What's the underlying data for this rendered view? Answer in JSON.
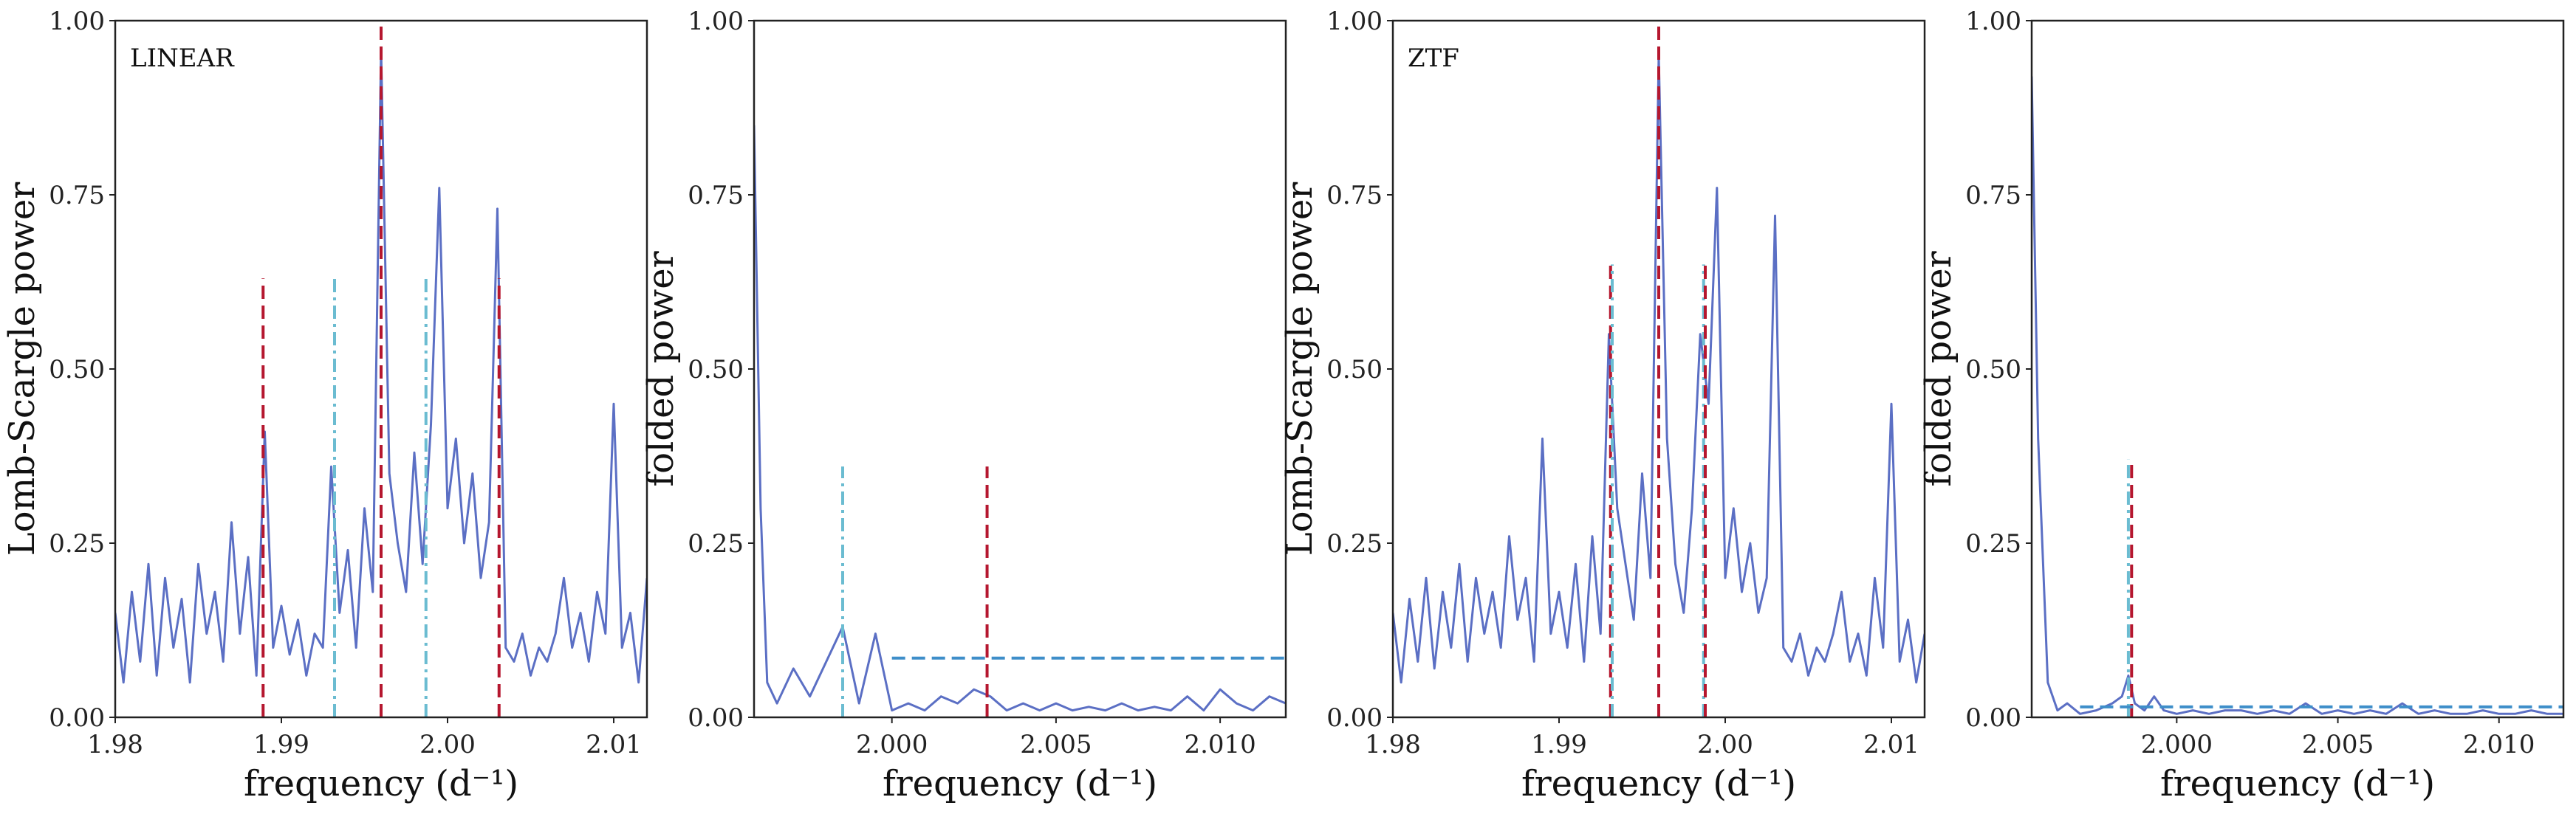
{
  "chart_data": [
    {
      "type": "line",
      "annotation": "LINEAR",
      "xlabel": "frequency (d⁻¹)",
      "ylabel": "Lomb-Scargle power",
      "xlim": [
        1.98,
        2.012
      ],
      "ylim": [
        0,
        1
      ],
      "xticks": [
        "1.98",
        "1.99",
        "2.00",
        "2.01"
      ],
      "xtick_values": [
        1.98,
        1.99,
        2.0,
        2.01
      ],
      "yticks": [
        "0.00",
        "0.25",
        "0.50",
        "0.75",
        "1.00"
      ],
      "ytick_values": [
        0,
        0.25,
        0.5,
        0.75,
        1.0
      ],
      "grid": false,
      "series": [
        {
          "color": "#5b6fc4",
          "x": [
            1.98,
            1.9805,
            1.981,
            1.9815,
            1.982,
            1.9825,
            1.983,
            1.9835,
            1.984,
            1.9845,
            1.985,
            1.9855,
            1.986,
            1.9865,
            1.987,
            1.9875,
            1.988,
            1.9885,
            1.989,
            1.9895,
            1.99,
            1.9905,
            1.991,
            1.9915,
            1.992,
            1.9925,
            1.993,
            1.9935,
            1.994,
            1.9945,
            1.995,
            1.9955,
            1.996,
            1.9965,
            1.997,
            1.9975,
            1.998,
            1.9985,
            1.999,
            1.9995,
            2.0,
            2.0005,
            2.001,
            2.0015,
            2.002,
            2.0025,
            2.003,
            2.0035,
            2.004,
            2.0045,
            2.005,
            2.0055,
            2.006,
            2.0065,
            2.007,
            2.0075,
            2.008,
            2.0085,
            2.009,
            2.0095,
            2.01,
            2.0105,
            2.011,
            2.0115,
            2.012
          ],
          "values": [
            0.15,
            0.05,
            0.18,
            0.08,
            0.22,
            0.06,
            0.2,
            0.1,
            0.17,
            0.05,
            0.22,
            0.12,
            0.18,
            0.08,
            0.28,
            0.12,
            0.23,
            0.06,
            0.41,
            0.1,
            0.16,
            0.09,
            0.14,
            0.06,
            0.12,
            0.1,
            0.36,
            0.15,
            0.24,
            0.1,
            0.3,
            0.18,
            0.96,
            0.35,
            0.25,
            0.18,
            0.38,
            0.22,
            0.42,
            0.76,
            0.3,
            0.4,
            0.25,
            0.35,
            0.2,
            0.28,
            0.73,
            0.1,
            0.08,
            0.12,
            0.06,
            0.1,
            0.08,
            0.12,
            0.2,
            0.1,
            0.15,
            0.08,
            0.18,
            0.12,
            0.45,
            0.1,
            0.15,
            0.05,
            0.2
          ]
        }
      ],
      "vlines": [
        {
          "x": 1.9889,
          "ymax": 0.63,
          "color": "#b5172f",
          "dash": "dashed"
        },
        {
          "x": 1.9932,
          "ymax": 0.63,
          "color": "#6bbcd1",
          "dash": "dashdot"
        },
        {
          "x": 1.996,
          "ymax": 1.0,
          "color": "#b5172f",
          "dash": "dashed"
        },
        {
          "x": 1.9987,
          "ymax": 0.63,
          "color": "#6bbcd1",
          "dash": "dashdot"
        },
        {
          "x": 2.0031,
          "ymax": 0.63,
          "color": "#b5172f",
          "dash": "dashed"
        }
      ],
      "hlines": []
    },
    {
      "type": "line",
      "annotation": "",
      "xlabel": "frequency (d⁻¹)",
      "ylabel": "folded power",
      "xlim": [
        1.9958,
        2.012
      ],
      "ylim": [
        0,
        1
      ],
      "xticks": [
        "2.000",
        "2.005",
        "2.010"
      ],
      "xtick_values": [
        2.0,
        2.005,
        2.01
      ],
      "yticks": [
        "0.00",
        "0.25",
        "0.50",
        "0.75",
        "1.00"
      ],
      "ytick_values": [
        0,
        0.25,
        0.5,
        0.75,
        1.0
      ],
      "grid": false,
      "series": [
        {
          "color": "#5b6fc4",
          "x": [
            1.9958,
            1.996,
            1.9962,
            1.9965,
            1.997,
            1.9975,
            1.998,
            1.9985,
            1.999,
            1.9995,
            2.0,
            2.0005,
            2.001,
            2.0015,
            2.002,
            2.0025,
            2.003,
            2.0035,
            2.004,
            2.0045,
            2.005,
            2.0055,
            2.006,
            2.0065,
            2.007,
            2.0075,
            2.008,
            2.0085,
            2.009,
            2.0095,
            2.01,
            2.0105,
            2.011,
            2.0115,
            2.012
          ],
          "values": [
            0.85,
            0.3,
            0.05,
            0.02,
            0.07,
            0.03,
            0.08,
            0.13,
            0.02,
            0.12,
            0.01,
            0.02,
            0.01,
            0.03,
            0.02,
            0.04,
            0.03,
            0.01,
            0.02,
            0.01,
            0.02,
            0.01,
            0.015,
            0.01,
            0.02,
            0.01,
            0.015,
            0.01,
            0.03,
            0.01,
            0.04,
            0.02,
            0.01,
            0.03,
            0.02
          ]
        }
      ],
      "vlines": [
        {
          "x": 1.9985,
          "ymax": 0.36,
          "color": "#6bbcd1",
          "dash": "dashdot"
        },
        {
          "x": 2.0029,
          "ymax": 0.36,
          "color": "#b5172f",
          "dash": "dashed"
        }
      ],
      "hlines": [
        {
          "y": 0.085,
          "x0": 2.0,
          "x1": 2.012,
          "color": "#3e8ec9",
          "dash": "dashed"
        }
      ]
    },
    {
      "type": "line",
      "annotation": "ZTF",
      "xlabel": "frequency (d⁻¹)",
      "ylabel": "Lomb-Scargle power",
      "xlim": [
        1.98,
        2.012
      ],
      "ylim": [
        0,
        1
      ],
      "xticks": [
        "1.98",
        "1.99",
        "2.00",
        "2.01"
      ],
      "xtick_values": [
        1.98,
        1.99,
        2.0,
        2.01
      ],
      "yticks": [
        "0.00",
        "0.25",
        "0.50",
        "0.75",
        "1.00"
      ],
      "ytick_values": [
        0,
        0.25,
        0.5,
        0.75,
        1.0
      ],
      "grid": false,
      "series": [
        {
          "color": "#5b6fc4",
          "x": [
            1.98,
            1.9805,
            1.981,
            1.9815,
            1.982,
            1.9825,
            1.983,
            1.9835,
            1.984,
            1.9845,
            1.985,
            1.9855,
            1.986,
            1.9865,
            1.987,
            1.9875,
            1.988,
            1.9885,
            1.989,
            1.9895,
            1.99,
            1.9905,
            1.991,
            1.9915,
            1.992,
            1.9925,
            1.993,
            1.9935,
            1.994,
            1.9945,
            1.995,
            1.9955,
            1.996,
            1.9965,
            1.997,
            1.9975,
            1.998,
            1.9985,
            1.999,
            1.9995,
            2.0,
            2.0005,
            2.001,
            2.0015,
            2.002,
            2.0025,
            2.003,
            2.0035,
            2.004,
            2.0045,
            2.005,
            2.0055,
            2.006,
            2.0065,
            2.007,
            2.0075,
            2.008,
            2.0085,
            2.009,
            2.0095,
            2.01,
            2.0105,
            2.011,
            2.0115,
            2.012
          ],
          "values": [
            0.15,
            0.05,
            0.17,
            0.08,
            0.2,
            0.07,
            0.18,
            0.1,
            0.22,
            0.08,
            0.2,
            0.12,
            0.18,
            0.1,
            0.26,
            0.14,
            0.2,
            0.08,
            0.4,
            0.12,
            0.18,
            0.1,
            0.22,
            0.08,
            0.26,
            0.12,
            0.55,
            0.3,
            0.22,
            0.14,
            0.35,
            0.2,
            0.95,
            0.4,
            0.22,
            0.15,
            0.3,
            0.55,
            0.45,
            0.76,
            0.2,
            0.3,
            0.18,
            0.25,
            0.15,
            0.2,
            0.72,
            0.1,
            0.08,
            0.12,
            0.06,
            0.1,
            0.08,
            0.12,
            0.18,
            0.08,
            0.12,
            0.06,
            0.2,
            0.1,
            0.45,
            0.08,
            0.14,
            0.05,
            0.12
          ]
        }
      ],
      "vlines": [
        {
          "x": 1.9931,
          "ymax": 0.65,
          "color": "#b5172f",
          "dash": "dashed"
        },
        {
          "x": 1.9932,
          "ymax": 0.65,
          "color": "#6bbcd1",
          "dash": "dashdot"
        },
        {
          "x": 1.996,
          "ymax": 1.0,
          "color": "#b5172f",
          "dash": "dashed"
        },
        {
          "x": 1.9987,
          "ymax": 0.65,
          "color": "#6bbcd1",
          "dash": "dashdot"
        },
        {
          "x": 1.9988,
          "ymax": 0.65,
          "color": "#b5172f",
          "dash": "dashed"
        }
      ],
      "hlines": []
    },
    {
      "type": "line",
      "annotation": "",
      "xlabel": "frequency (d⁻¹)",
      "ylabel": "folded power",
      "xlim": [
        1.9955,
        2.012
      ],
      "ylim": [
        0,
        1
      ],
      "xticks": [
        "2.000",
        "2.005",
        "2.010"
      ],
      "xtick_values": [
        2.0,
        2.005,
        2.01
      ],
      "yticks": [
        "0.00",
        "0.25",
        "0.50",
        "0.75",
        "1.00"
      ],
      "ytick_values": [
        0,
        0.25,
        0.5,
        0.75,
        1.0
      ],
      "grid": false,
      "series": [
        {
          "color": "#5b6fc4",
          "x": [
            1.9955,
            1.9957,
            1.996,
            1.9963,
            1.9966,
            1.997,
            1.9975,
            1.998,
            1.9983,
            1.9985,
            1.9987,
            1.999,
            1.9993,
            1.9996,
            2.0,
            2.0005,
            2.001,
            2.0015,
            2.002,
            2.0025,
            2.003,
            2.0035,
            2.004,
            2.0045,
            2.005,
            2.0055,
            2.006,
            2.0065,
            2.007,
            2.0075,
            2.008,
            2.0085,
            2.009,
            2.0095,
            2.01,
            2.0105,
            2.011,
            2.0115,
            2.012
          ],
          "values": [
            0.92,
            0.4,
            0.05,
            0.01,
            0.02,
            0.005,
            0.01,
            0.02,
            0.03,
            0.06,
            0.02,
            0.01,
            0.03,
            0.01,
            0.005,
            0.01,
            0.005,
            0.01,
            0.01,
            0.005,
            0.01,
            0.005,
            0.02,
            0.005,
            0.01,
            0.005,
            0.01,
            0.005,
            0.02,
            0.005,
            0.01,
            0.005,
            0.005,
            0.01,
            0.005,
            0.005,
            0.01,
            0.005,
            0.005
          ]
        }
      ],
      "vlines": [
        {
          "x": 1.9985,
          "ymax": 0.37,
          "color": "#6bbcd1",
          "dash": "dashdot"
        },
        {
          "x": 1.9986,
          "ymax": 0.37,
          "color": "#b5172f",
          "dash": "dashed"
        }
      ],
      "hlines": [
        {
          "y": 0.015,
          "x0": 1.997,
          "x1": 2.012,
          "color": "#3e8ec9",
          "dash": "dashed"
        }
      ]
    }
  ]
}
